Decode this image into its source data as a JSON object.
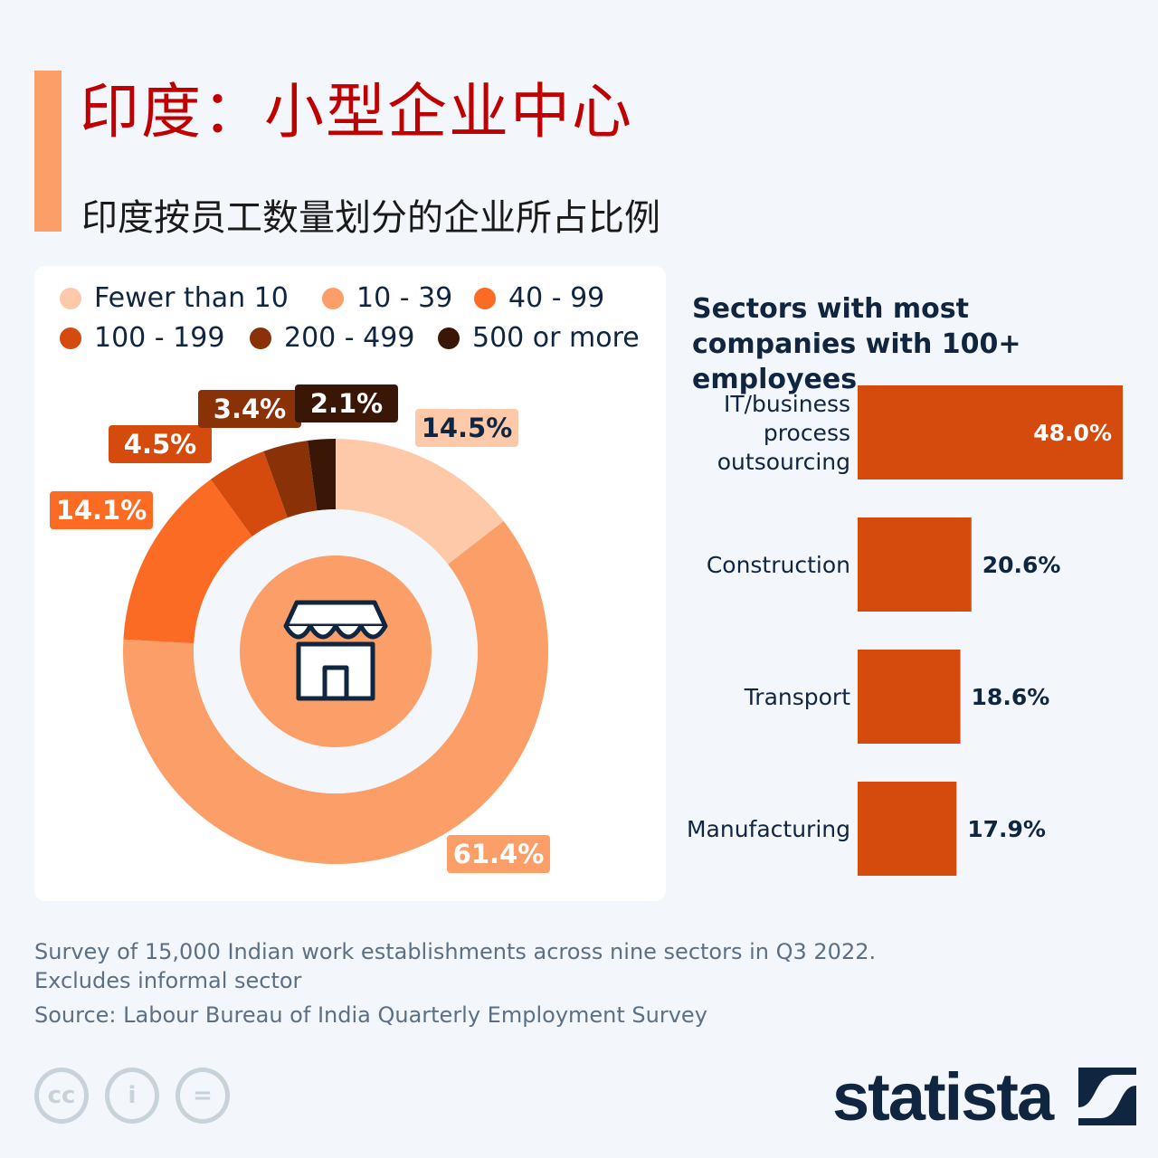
{
  "title": "印度：小型企业中心",
  "subtitle": "印度按员工数量划分的企业所占比例",
  "colors": {
    "accent": "#fc9e67",
    "title": "#c00000",
    "bar": "#d54a0d",
    "navy": "#0f2540"
  },
  "icons": {
    "center": "storefront-icon",
    "license": [
      "cc-icon",
      "by-attribution-icon",
      "no-derivatives-icon"
    ]
  },
  "chart_data": [
    {
      "type": "pie",
      "variant": "donut",
      "categories": [
        "Fewer than 10",
        "10-39",
        "40-99",
        "100-199",
        "200-499",
        "500 or more"
      ],
      "legend_labels": [
        "Fewer than 10",
        "10 - 39",
        "40 - 99",
        "100 - 199",
        "200 - 499",
        "500 or more"
      ],
      "values": [
        14.5,
        61.4,
        14.1,
        4.5,
        3.4,
        2.1
      ],
      "labels": [
        "14.5%",
        "61.4%",
        "14.1%",
        "4.5%",
        "3.4%",
        "2.1%"
      ],
      "colors": [
        "#fdc9a9",
        "#fc9e67",
        "#fb6b23",
        "#d54a0d",
        "#8a3108",
        "#3a1606"
      ],
      "legend": "top"
    },
    {
      "type": "bar",
      "orientation": "horizontal",
      "title": "Sectors with most companies with 100+ employees",
      "categories": [
        "IT/business process outsourcing",
        "Construction",
        "Transport",
        "Manufacturing"
      ],
      "category_lines": [
        [
          "IT/business",
          "process",
          "outsourcing"
        ],
        [
          "Construction"
        ],
        [
          "Transport"
        ],
        [
          "Manufacturing"
        ]
      ],
      "values": [
        48.0,
        20.6,
        18.6,
        17.9
      ],
      "labels": [
        "48.0%",
        "20.6%",
        "18.6%",
        "17.9%"
      ],
      "xlim": [
        0,
        48
      ]
    }
  ],
  "footer": {
    "note_lines": [
      "Survey of 15,000 Indian work establishments across nine sectors in Q3 2022.",
      "Excludes informal sector"
    ],
    "source": "Source: Labour Bureau of India Quarterly Employment Survey",
    "license_glyphs": [
      "cc",
      "i",
      "="
    ],
    "brand": "statista"
  }
}
